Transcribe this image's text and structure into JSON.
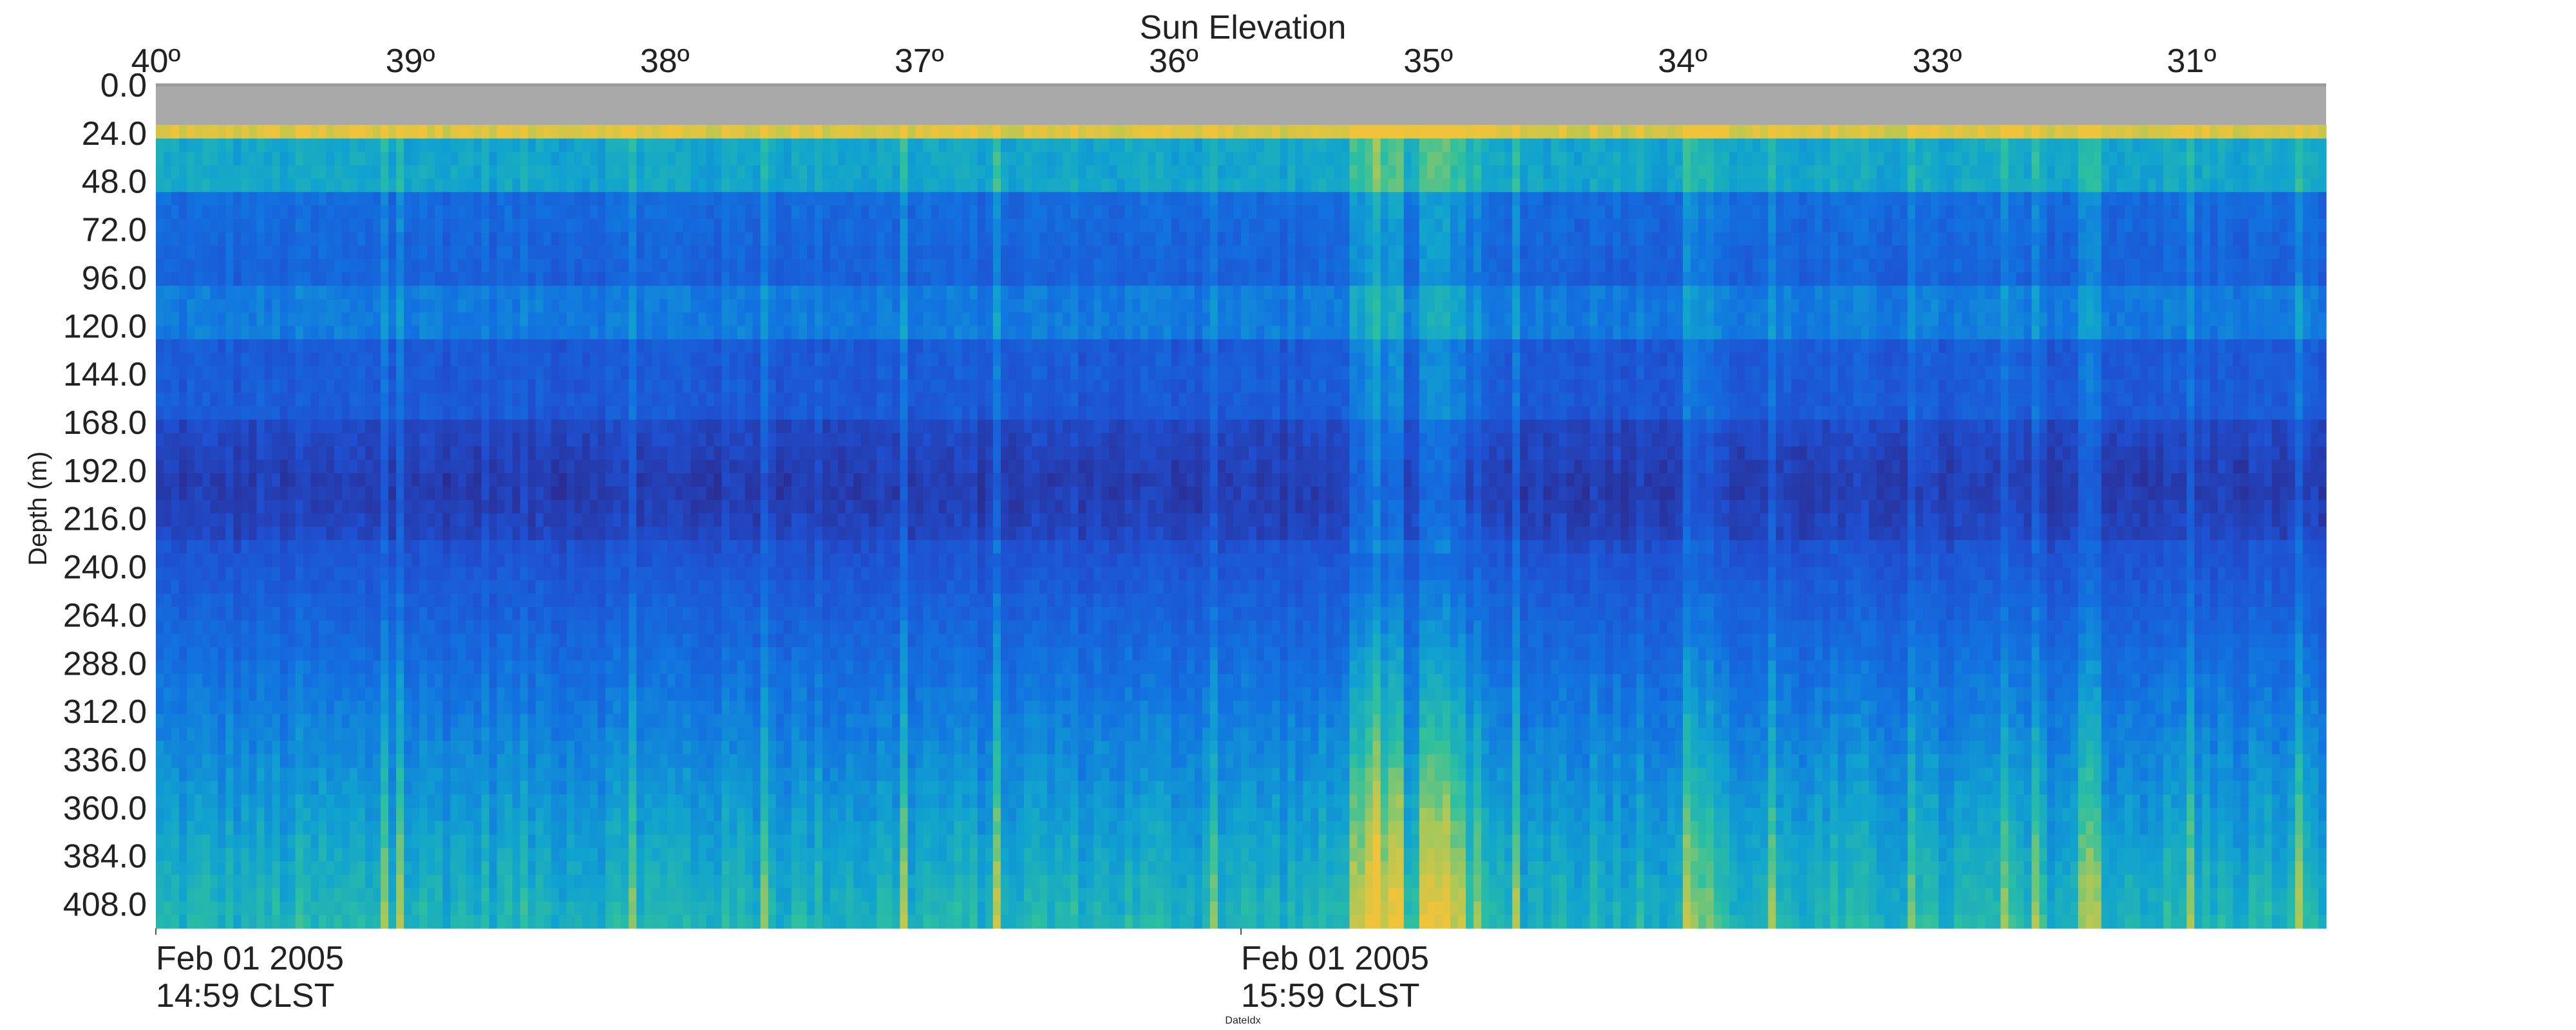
{
  "chart_data": {
    "type": "heatmap",
    "title": "",
    "top_axis_label": "Sun Elevation",
    "top_ticks": [
      "40º",
      "39º",
      "38º",
      "37º",
      "36º",
      "35º",
      "34º",
      "33º",
      "31º"
    ],
    "top_tick_values": [
      40,
      39,
      38,
      37,
      36,
      35,
      34,
      33,
      31
    ],
    "ylabel": "Depth (m)",
    "y_ticks": [
      0.0,
      24.0,
      48.0,
      72.0,
      96.0,
      120.0,
      144.0,
      168.0,
      192.0,
      216.0,
      240.0,
      264.0,
      288.0,
      312.0,
      336.0,
      360.0,
      384.0,
      408.0
    ],
    "y_tick_labels": [
      "0.0",
      "24.0",
      "48.0",
      "72.0",
      "96.0",
      "120.0",
      "144.0",
      "168.0",
      "192.0",
      "216.0",
      "240.0",
      "264.0",
      "288.0",
      "312.0",
      "336.0",
      "360.0",
      "384.0",
      "408.0"
    ],
    "ylim": [
      0,
      420
    ],
    "y_inverted": true,
    "xlabel": "DateIdx",
    "x_ticks": [
      {
        "date": "Feb 01 2005",
        "time": "14:59 CLST"
      },
      {
        "date": "Feb 01 2005",
        "time": "15:59 CLST"
      }
    ],
    "colormap": [
      "#2b2a8e",
      "#1f4fd0",
      "#1273e0",
      "#11a3cf",
      "#2dc0a0",
      "#a6c85a",
      "#f0c43a"
    ],
    "no_data_color": "#a9a9a9",
    "no_data_depth_range": [
      0,
      20
    ]
  }
}
